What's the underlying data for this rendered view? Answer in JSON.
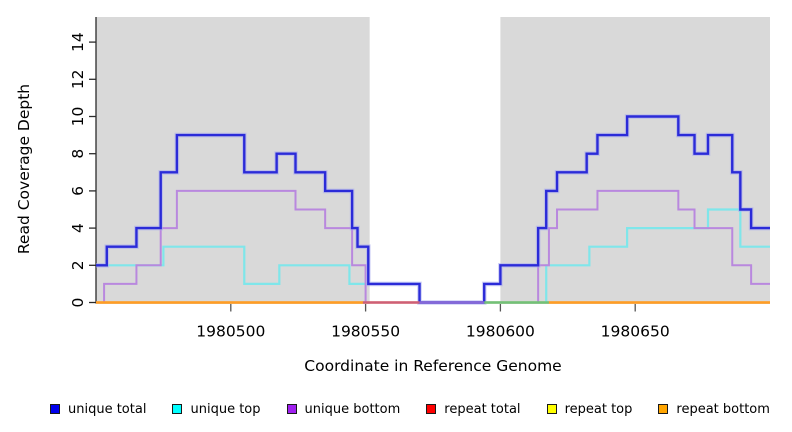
{
  "figure": {
    "xlabel": "Coordinate in Reference Genome",
    "ylabel": "Read Coverage Depth"
  },
  "chart_data": {
    "type": "line",
    "style": "step",
    "title": "",
    "xlabel": "Coordinate in Reference Genome",
    "ylabel": "Read Coverage Depth",
    "xlim": [
      1980450,
      1980700
    ],
    "ylim": [
      0,
      15.3
    ],
    "x_ticks": [
      1980500,
      1980550,
      1980600,
      1980650
    ],
    "y_ticks": [
      0,
      2,
      4,
      6,
      8,
      10,
      12,
      14
    ],
    "grid": false,
    "legend_position": "bottom",
    "background_bands": {
      "color": "#d9d9d9",
      "regions": [
        [
          1980450,
          1980551.5
        ],
        [
          1980600,
          1980700
        ]
      ]
    },
    "series": [
      {
        "name": "repeat total",
        "color": "#ff0000",
        "width": 1.8,
        "steps": [
          [
            1980450,
            0
          ]
        ]
      },
      {
        "name": "repeat top",
        "color": "#ffff00",
        "width": 1.8,
        "steps": [
          [
            1980450,
            0
          ]
        ]
      },
      {
        "name": "repeat bottom",
        "color": "#ff9d24",
        "width": 2.2,
        "steps": [
          [
            1980450,
            0
          ]
        ]
      },
      {
        "name": "unique top",
        "color": "#7fe6ea",
        "width": 2.2,
        "steps": [
          [
            1980450,
            2
          ],
          [
            1980475,
            3
          ],
          [
            1980505,
            1
          ],
          [
            1980518,
            2
          ],
          [
            1980544,
            1
          ],
          [
            1980570,
            0
          ],
          [
            1980617,
            2
          ],
          [
            1980633,
            3
          ],
          [
            1980647,
            4
          ],
          [
            1980677,
            5
          ],
          [
            1980689,
            3
          ]
        ]
      },
      {
        "name": "unique bottom",
        "color": "#b988de",
        "width": 2,
        "steps": [
          [
            1980450,
            0
          ],
          [
            1980453,
            1
          ],
          [
            1980465,
            2
          ],
          [
            1980474,
            4
          ],
          [
            1980480,
            6
          ],
          [
            1980524,
            5
          ],
          [
            1980535,
            4
          ],
          [
            1980545,
            2
          ],
          [
            1980550,
            0
          ],
          [
            1980614,
            2
          ],
          [
            1980618,
            4
          ],
          [
            1980621,
            5
          ],
          [
            1980636,
            6
          ],
          [
            1980666,
            5
          ],
          [
            1980672,
            4
          ],
          [
            1980686,
            2
          ],
          [
            1980693,
            1
          ]
        ]
      },
      {
        "name": "unique total",
        "color": "#2b2bd8",
        "halo": "#a8aaf0",
        "width": 2.4,
        "steps": [
          [
            1980450,
            2
          ],
          [
            1980454,
            3
          ],
          [
            1980465,
            4
          ],
          [
            1980474,
            7
          ],
          [
            1980480,
            9
          ],
          [
            1980505,
            7
          ],
          [
            1980517,
            8
          ],
          [
            1980524,
            7
          ],
          [
            1980535,
            6
          ],
          [
            1980545,
            4
          ],
          [
            1980547,
            3
          ],
          [
            1980551,
            1
          ],
          [
            1980570,
            0
          ],
          [
            1980594,
            1
          ],
          [
            1980600,
            2
          ],
          [
            1980614,
            4
          ],
          [
            1980617,
            6
          ],
          [
            1980621,
            7
          ],
          [
            1980632,
            8
          ],
          [
            1980636,
            9
          ],
          [
            1980647,
            10
          ],
          [
            1980666,
            9
          ],
          [
            1980672,
            8
          ],
          [
            1980677,
            9
          ],
          [
            1980686,
            7
          ],
          [
            1980689,
            5
          ],
          [
            1980693,
            4
          ]
        ]
      }
    ],
    "zero_line_overlays": [
      {
        "from": 1980450,
        "to": 1980549,
        "color": "#ff9d24"
      },
      {
        "from": 1980549,
        "to": 1980570,
        "color": "#cd5f78"
      },
      {
        "from": 1980570,
        "to": 1980594,
        "color": "#8668d8"
      },
      {
        "from": 1980594,
        "to": 1980618,
        "color": "#72c177"
      },
      {
        "from": 1980618,
        "to": 1980700,
        "color": "#ff9d24"
      }
    ],
    "legend": [
      {
        "label": "unique total",
        "color": "#0000ee"
      },
      {
        "label": "unique top",
        "color": "#00ffff"
      },
      {
        "label": "unique bottom",
        "color": "#a020f0"
      },
      {
        "label": "repeat total",
        "color": "#ff0000"
      },
      {
        "label": "repeat top",
        "color": "#ffff00"
      },
      {
        "label": "repeat bottom",
        "color": "#ffa500"
      }
    ]
  }
}
